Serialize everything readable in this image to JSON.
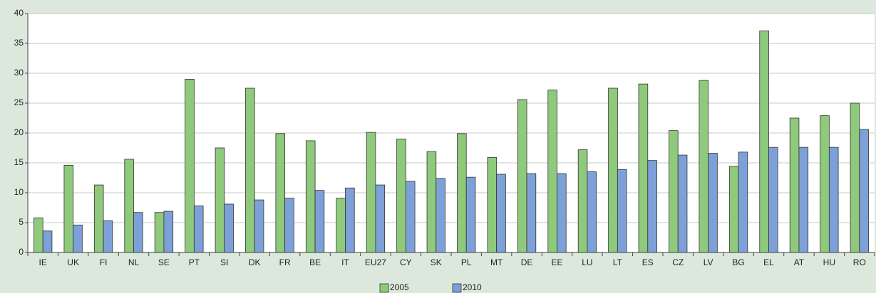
{
  "chart_data": {
    "type": "bar",
    "categories": [
      "IE",
      "UK",
      "FI",
      "NL",
      "SE",
      "PT",
      "SI",
      "DK",
      "FR",
      "BE",
      "IT",
      "EU27",
      "CY",
      "SK",
      "PL",
      "MT",
      "DE",
      "EE",
      "LU",
      "LT",
      "ES",
      "CZ",
      "LV",
      "BG",
      "EL",
      "AT",
      "HU",
      "RO"
    ],
    "series": [
      {
        "name": "2005",
        "color": "#8ec97c",
        "values": [
          5.8,
          14.6,
          11.3,
          15.6,
          6.7,
          29.0,
          17.5,
          27.5,
          19.9,
          18.7,
          9.1,
          20.1,
          19.0,
          16.9,
          19.9,
          15.9,
          25.6,
          27.2,
          17.2,
          27.5,
          28.2,
          20.4,
          28.8,
          14.4,
          37.1,
          22.5,
          22.9,
          25.0
        ]
      },
      {
        "name": "2010",
        "color": "#7ea0d8",
        "values": [
          3.6,
          4.6,
          5.3,
          6.7,
          6.9,
          7.8,
          8.1,
          8.8,
          9.1,
          10.4,
          10.8,
          11.3,
          11.9,
          12.4,
          12.6,
          13.1,
          13.2,
          13.2,
          13.5,
          13.9,
          15.4,
          16.3,
          16.6,
          16.8,
          17.6,
          17.6,
          17.6,
          20.6
        ]
      }
    ],
    "ylim": [
      0,
      40
    ],
    "yticks": [
      0,
      5,
      10,
      15,
      20,
      25,
      30,
      35,
      40
    ],
    "grid": true
  }
}
